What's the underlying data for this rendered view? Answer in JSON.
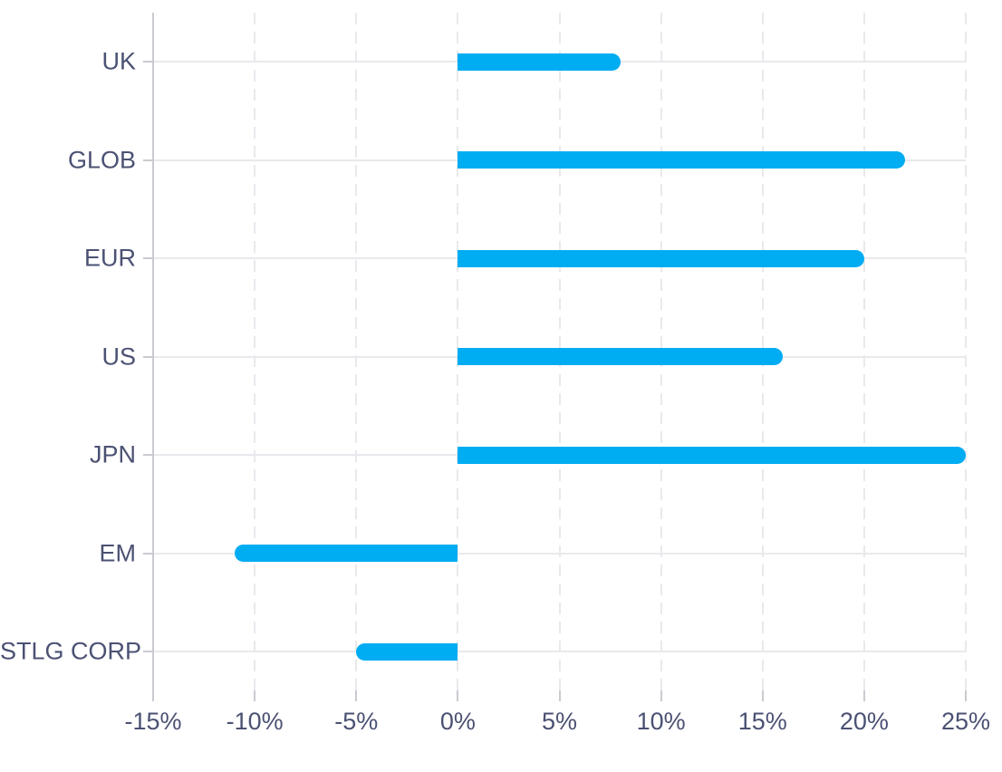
{
  "chart_data": {
    "type": "bar",
    "orientation": "horizontal",
    "title": "",
    "categories": [
      "UK",
      "GLOB",
      "EUR",
      "US",
      "JPN",
      "EM",
      "STLG CORP"
    ],
    "values": [
      8,
      22,
      20,
      16,
      25,
      -11,
      -5
    ],
    "value_unit": "%",
    "xlim": [
      -15,
      25
    ],
    "x_ticks": [
      {
        "value": -15,
        "label": "-15%"
      },
      {
        "value": -10,
        "label": "-10%"
      },
      {
        "value": -5,
        "label": "-5%"
      },
      {
        "value": 0,
        "label": "0%"
      },
      {
        "value": 5,
        "label": "5%"
      },
      {
        "value": 10,
        "label": "10%"
      },
      {
        "value": 15,
        "label": "15%"
      },
      {
        "value": 20,
        "label": "20%"
      },
      {
        "value": 25,
        "label": "25%"
      }
    ],
    "grid": "on",
    "legend": "none",
    "colors": {
      "bar": "#00ACF2",
      "label": "#4B5173",
      "axis_line": "#CACAD1",
      "gridline": "#E9E9ED"
    }
  }
}
